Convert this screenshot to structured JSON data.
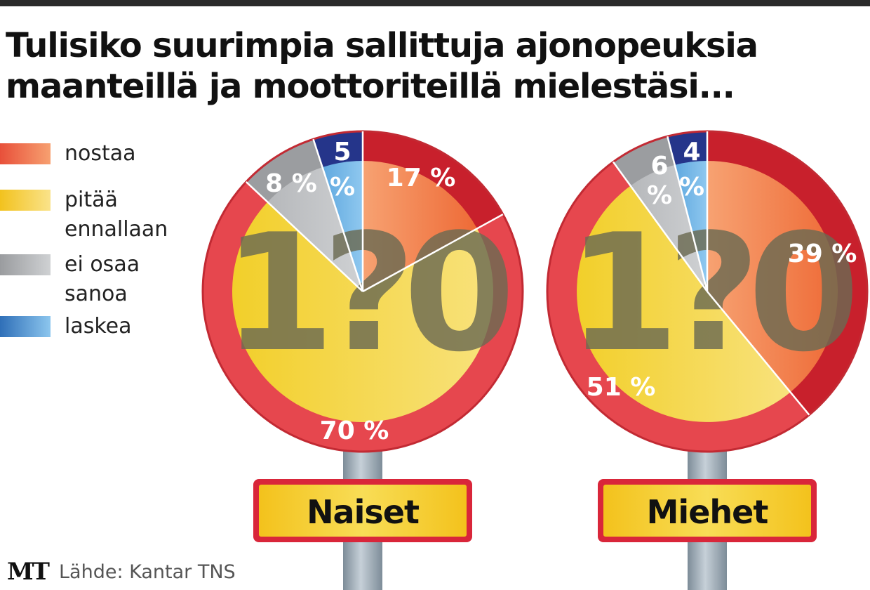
{
  "title_lines": [
    "Tulisiko suurimpia sallittuja ajonopeuksia",
    "maanteillä ja moottoriteillä mielestäsi..."
  ],
  "legend": [
    {
      "lines": [
        "nostaa"
      ],
      "color": "#f0703a"
    },
    {
      "lines": [
        "pitää",
        "ennallaan"
      ],
      "color": "#f3d23a"
    },
    {
      "lines": [
        "ei osaa",
        "sanoa"
      ],
      "color": "#a9abae"
    },
    {
      "lines": [
        "laskea"
      ],
      "color": "#4a8fd0"
    }
  ],
  "sign_number": "1?0",
  "footer": {
    "logo": "MT",
    "source": "Lähde: Kantar TNS"
  },
  "colors": {
    "ring_red": "#e03a40",
    "nostaa": "#f0703a",
    "nostaa_ring": "#c8202c",
    "pitaa": "#f3d23a",
    "pitaa_ring": "#e6474e",
    "eos": "#a9abae",
    "eos_ring": "#9b9da0",
    "laskea": "#6fb5e6",
    "laskea_ring": "#25358a",
    "plate_yellow": "#f6cf2e",
    "plate_border": "#d9263a",
    "pole": "#9aa8b4"
  },
  "chart_data": [
    {
      "type": "pie",
      "label": "Naiset",
      "categories": [
        "nostaa",
        "pitää ennallaan",
        "ei osaa sanoa",
        "laskea"
      ],
      "values": [
        17,
        70,
        8,
        5
      ],
      "value_labels": [
        "17 %",
        "70 %",
        "8 %",
        [
          "5",
          "%"
        ]
      ]
    },
    {
      "type": "pie",
      "label": "Miehet",
      "categories": [
        "nostaa",
        "pitää ennallaan",
        "ei osaa sanoa",
        "laskea"
      ],
      "values": [
        39,
        51,
        6,
        4
      ],
      "value_labels": [
        "39 %",
        "51 %",
        [
          "6",
          "%"
        ],
        [
          "4",
          "%"
        ]
      ]
    }
  ]
}
